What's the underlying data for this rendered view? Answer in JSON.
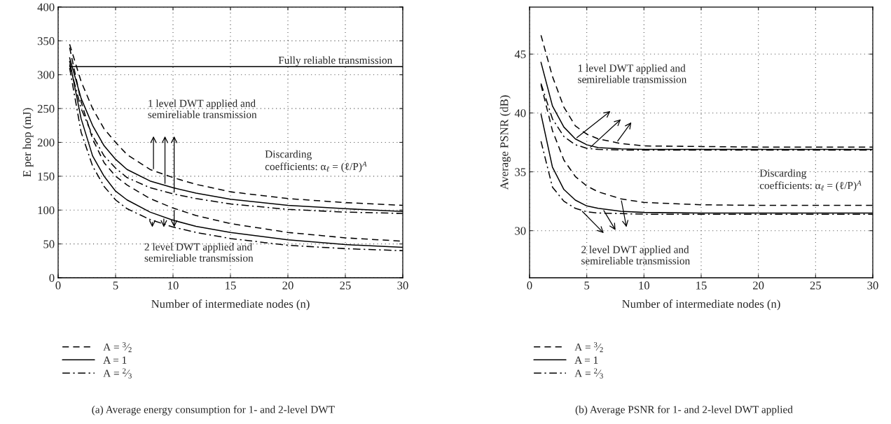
{
  "chart_data": [
    {
      "type": "line",
      "title": "(a) Average energy consumption for 1- and 2-level DWT",
      "xlabel": "Number of intermediate nodes (n)",
      "ylabel": "E per hop (mJ)",
      "x": [
        1,
        2,
        3,
        4,
        5,
        6,
        8,
        10,
        12,
        15,
        20,
        25,
        30
      ],
      "series": [
        {
          "name": "A = $^{3}$⁄$_{2}$",
          "color": "#000000",
          "line_style": "dashed",
          "values": [
            345,
            290,
            250,
            220,
            200,
            182,
            160,
            148,
            138,
            127,
            117,
            111,
            107
          ]
        },
        {
          "name": "A = 1",
          "color": "#000000",
          "line_style": "solid",
          "values": [
            325,
            265,
            225,
            195,
            175,
            160,
            143,
            133,
            125,
            116,
            107,
            102,
            98
          ]
        },
        {
          "name": "A = $^{2}$⁄$_{3}$",
          "color": "#000000",
          "line_style": "dashdot",
          "values": [
            315,
            250,
            210,
            180,
            162,
            148,
            133,
            124,
            117,
            109,
            101,
            97,
            95
          ]
        },
        {
          "color": "#000000",
          "line_style": "dashed",
          "values": [
            340,
            260,
            205,
            170,
            150,
            137,
            117,
            103,
            92,
            80,
            67,
            59,
            54
          ]
        },
        {
          "color": "#000000",
          "line_style": "solid",
          "values": [
            320,
            235,
            180,
            150,
            128,
            115,
            97,
            85,
            76,
            67,
            56,
            49,
            45
          ]
        },
        {
          "color": "#000000",
          "line_style": "dashdot",
          "values": [
            310,
            215,
            165,
            135,
            115,
            102,
            86,
            75,
            67,
            58,
            48,
            43,
            40
          ]
        },
        {
          "color": "#000000",
          "line_style": "solid",
          "x": [
            1,
            30
          ],
          "values": [
            312,
            312
          ]
        }
      ],
      "annotations": [
        "Fully reliable transmission",
        "1 level DWT applied and\nsemireliable transmission",
        "Discarding\ncoefficients: α$_{ℓ}$ = (ℓ/P)$^{A}$",
        "2 level DWT applied and\nsemireliable transmission"
      ],
      "xlim": [
        0,
        30
      ],
      "ylim": [
        0,
        400
      ],
      "xticks": [
        0,
        5,
        10,
        15,
        20,
        25,
        30
      ],
      "yticks": [
        0,
        50,
        100,
        150,
        200,
        250,
        300,
        350,
        400
      ],
      "grid": true,
      "legend": "bottom"
    },
    {
      "type": "line",
      "title": "(b) Average PSNR for 1- and 2-level DWT applied",
      "xlabel": "Number of intermediate nodes (n)",
      "ylabel": "Average PSNR (dB)",
      "x": [
        1,
        2,
        3,
        4,
        5,
        6,
        8,
        10,
        15,
        20,
        30
      ],
      "series": [
        {
          "name": "A = $^{3}$⁄$_{2}$",
          "color": "#000000",
          "line_style": "dashed",
          "values": [
            46.6,
            43.1,
            40.5,
            38.9,
            38.2,
            37.8,
            37.4,
            37.2,
            37.15,
            37.1,
            37.1
          ]
        },
        {
          "name": "A = 1",
          "color": "#000000",
          "line_style": "solid",
          "values": [
            44.3,
            40.6,
            38.8,
            37.8,
            37.3,
            37.05,
            36.95,
            36.9,
            36.9,
            36.9,
            36.9
          ]
        },
        {
          "name": "A = $^{2}$⁄$_{3}$",
          "color": "#000000",
          "line_style": "dashdot",
          "values": [
            42.5,
            39.5,
            38.0,
            37.3,
            37.0,
            36.9,
            36.85,
            36.85,
            36.85,
            36.85,
            36.85
          ]
        },
        {
          "color": "#000000",
          "line_style": "dashed",
          "values": [
            42.4,
            38.5,
            36.0,
            34.6,
            33.8,
            33.3,
            32.7,
            32.4,
            32.2,
            32.15,
            32.15
          ]
        },
        {
          "color": "#000000",
          "line_style": "solid",
          "values": [
            39.9,
            35.4,
            33.5,
            32.6,
            32.1,
            31.9,
            31.65,
            31.55,
            31.5,
            31.5,
            31.5
          ]
        },
        {
          "color": "#000000",
          "line_style": "dashdot",
          "values": [
            37.6,
            33.7,
            32.5,
            31.9,
            31.6,
            31.5,
            31.45,
            31.4,
            31.4,
            31.4,
            31.4
          ]
        }
      ],
      "annotations": [
        "1 level DWT applied and\nsemireliable transmission",
        "Discarding\ncoefficients: α$_{ℓ}$ = (ℓ/P)$^{A}$",
        "2 level DWT applied and\nsemireliable transmission"
      ],
      "xlim": [
        0,
        30
      ],
      "ylim": [
        26,
        49
      ],
      "xticks": [
        0,
        5,
        10,
        15,
        20,
        25,
        30
      ],
      "yticks": [
        30,
        35,
        40,
        45
      ],
      "grid": true,
      "legend": "bottom"
    }
  ]
}
